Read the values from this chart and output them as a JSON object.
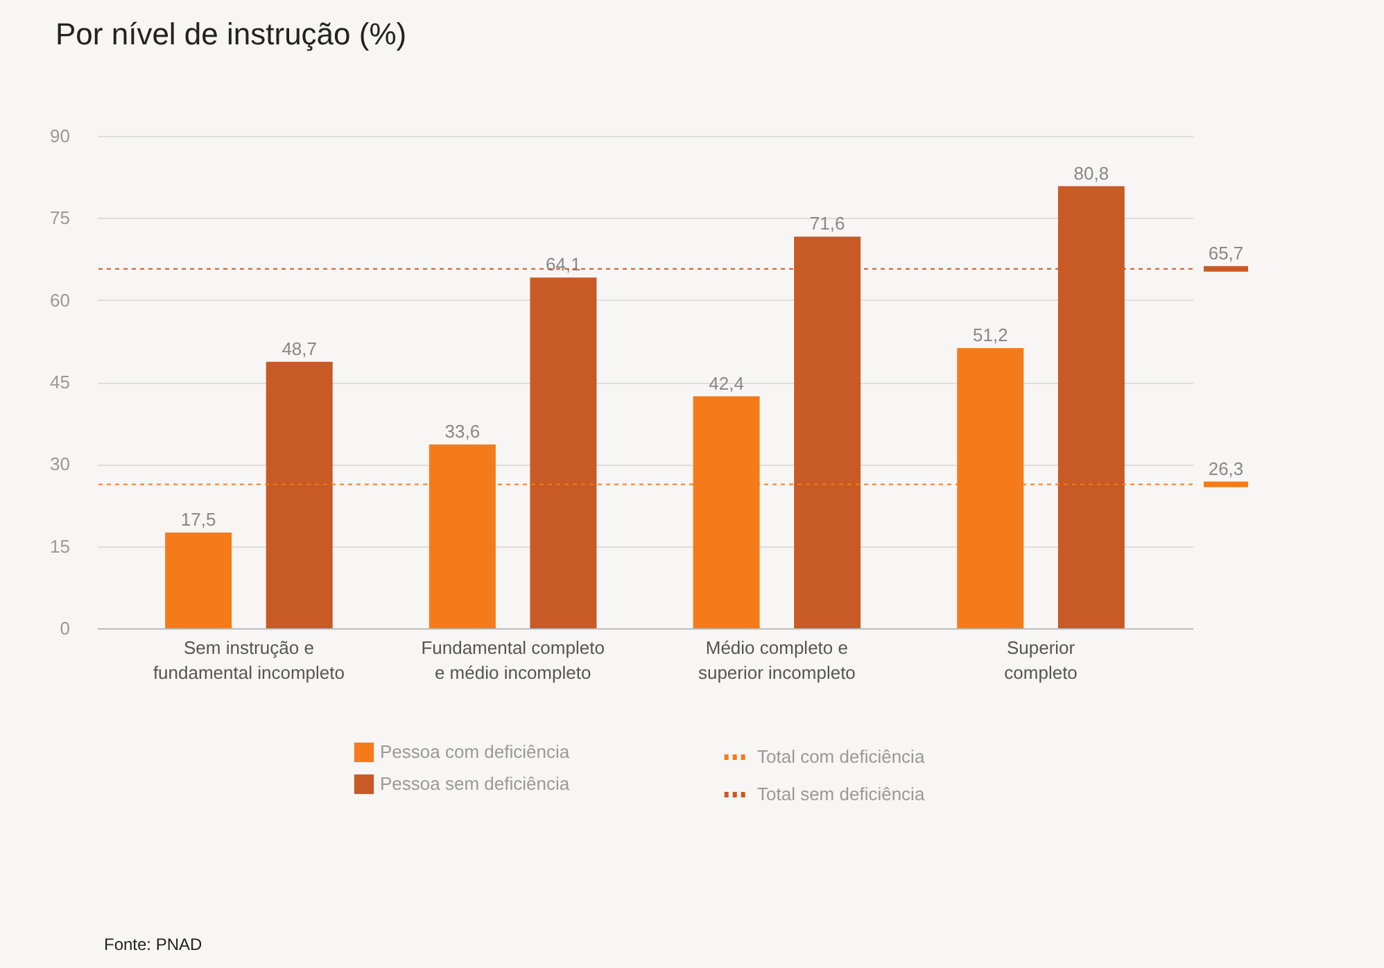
{
  "chart_data": {
    "type": "bar",
    "title": "Por nível de instrução (%)",
    "categories": [
      "Sem instrução e\nfundamental incompleto",
      "Fundamental completo\ne médio incompleto",
      "Médio completo e\nsuperior incompleto",
      "Superior\ncompleto"
    ],
    "series": [
      {
        "name": "Pessoa com deficiência",
        "color": "#f57a1a",
        "values": [
          17.5,
          33.6,
          42.4,
          51.2
        ],
        "value_labels": [
          "17,5",
          "33,6",
          "42,4",
          "51,2"
        ]
      },
      {
        "name": "Pessoa sem deficiência",
        "color": "#c85a25",
        "values": [
          48.7,
          64.1,
          71.6,
          80.8
        ],
        "value_labels": [
          "48,7",
          "64,1",
          "71,6",
          "80,8"
        ]
      }
    ],
    "ylim": [
      0,
      90
    ],
    "yticks": [
      0,
      15,
      30,
      45,
      60,
      75,
      90
    ],
    "grid": "y",
    "legend": "bottom",
    "ref_lines": [
      {
        "axis": "y",
        "value": 26.3,
        "label": "Total com deficiência",
        "color": "#f57a1a",
        "line_style": "dashed"
      },
      {
        "axis": "y",
        "value": 65.7,
        "label": "Total sem deficiência",
        "color": "#c85a25",
        "line_style": "dashed"
      }
    ],
    "annotations": [
      "26,3",
      "65,7",
      "Fonte: PNAD"
    ]
  }
}
